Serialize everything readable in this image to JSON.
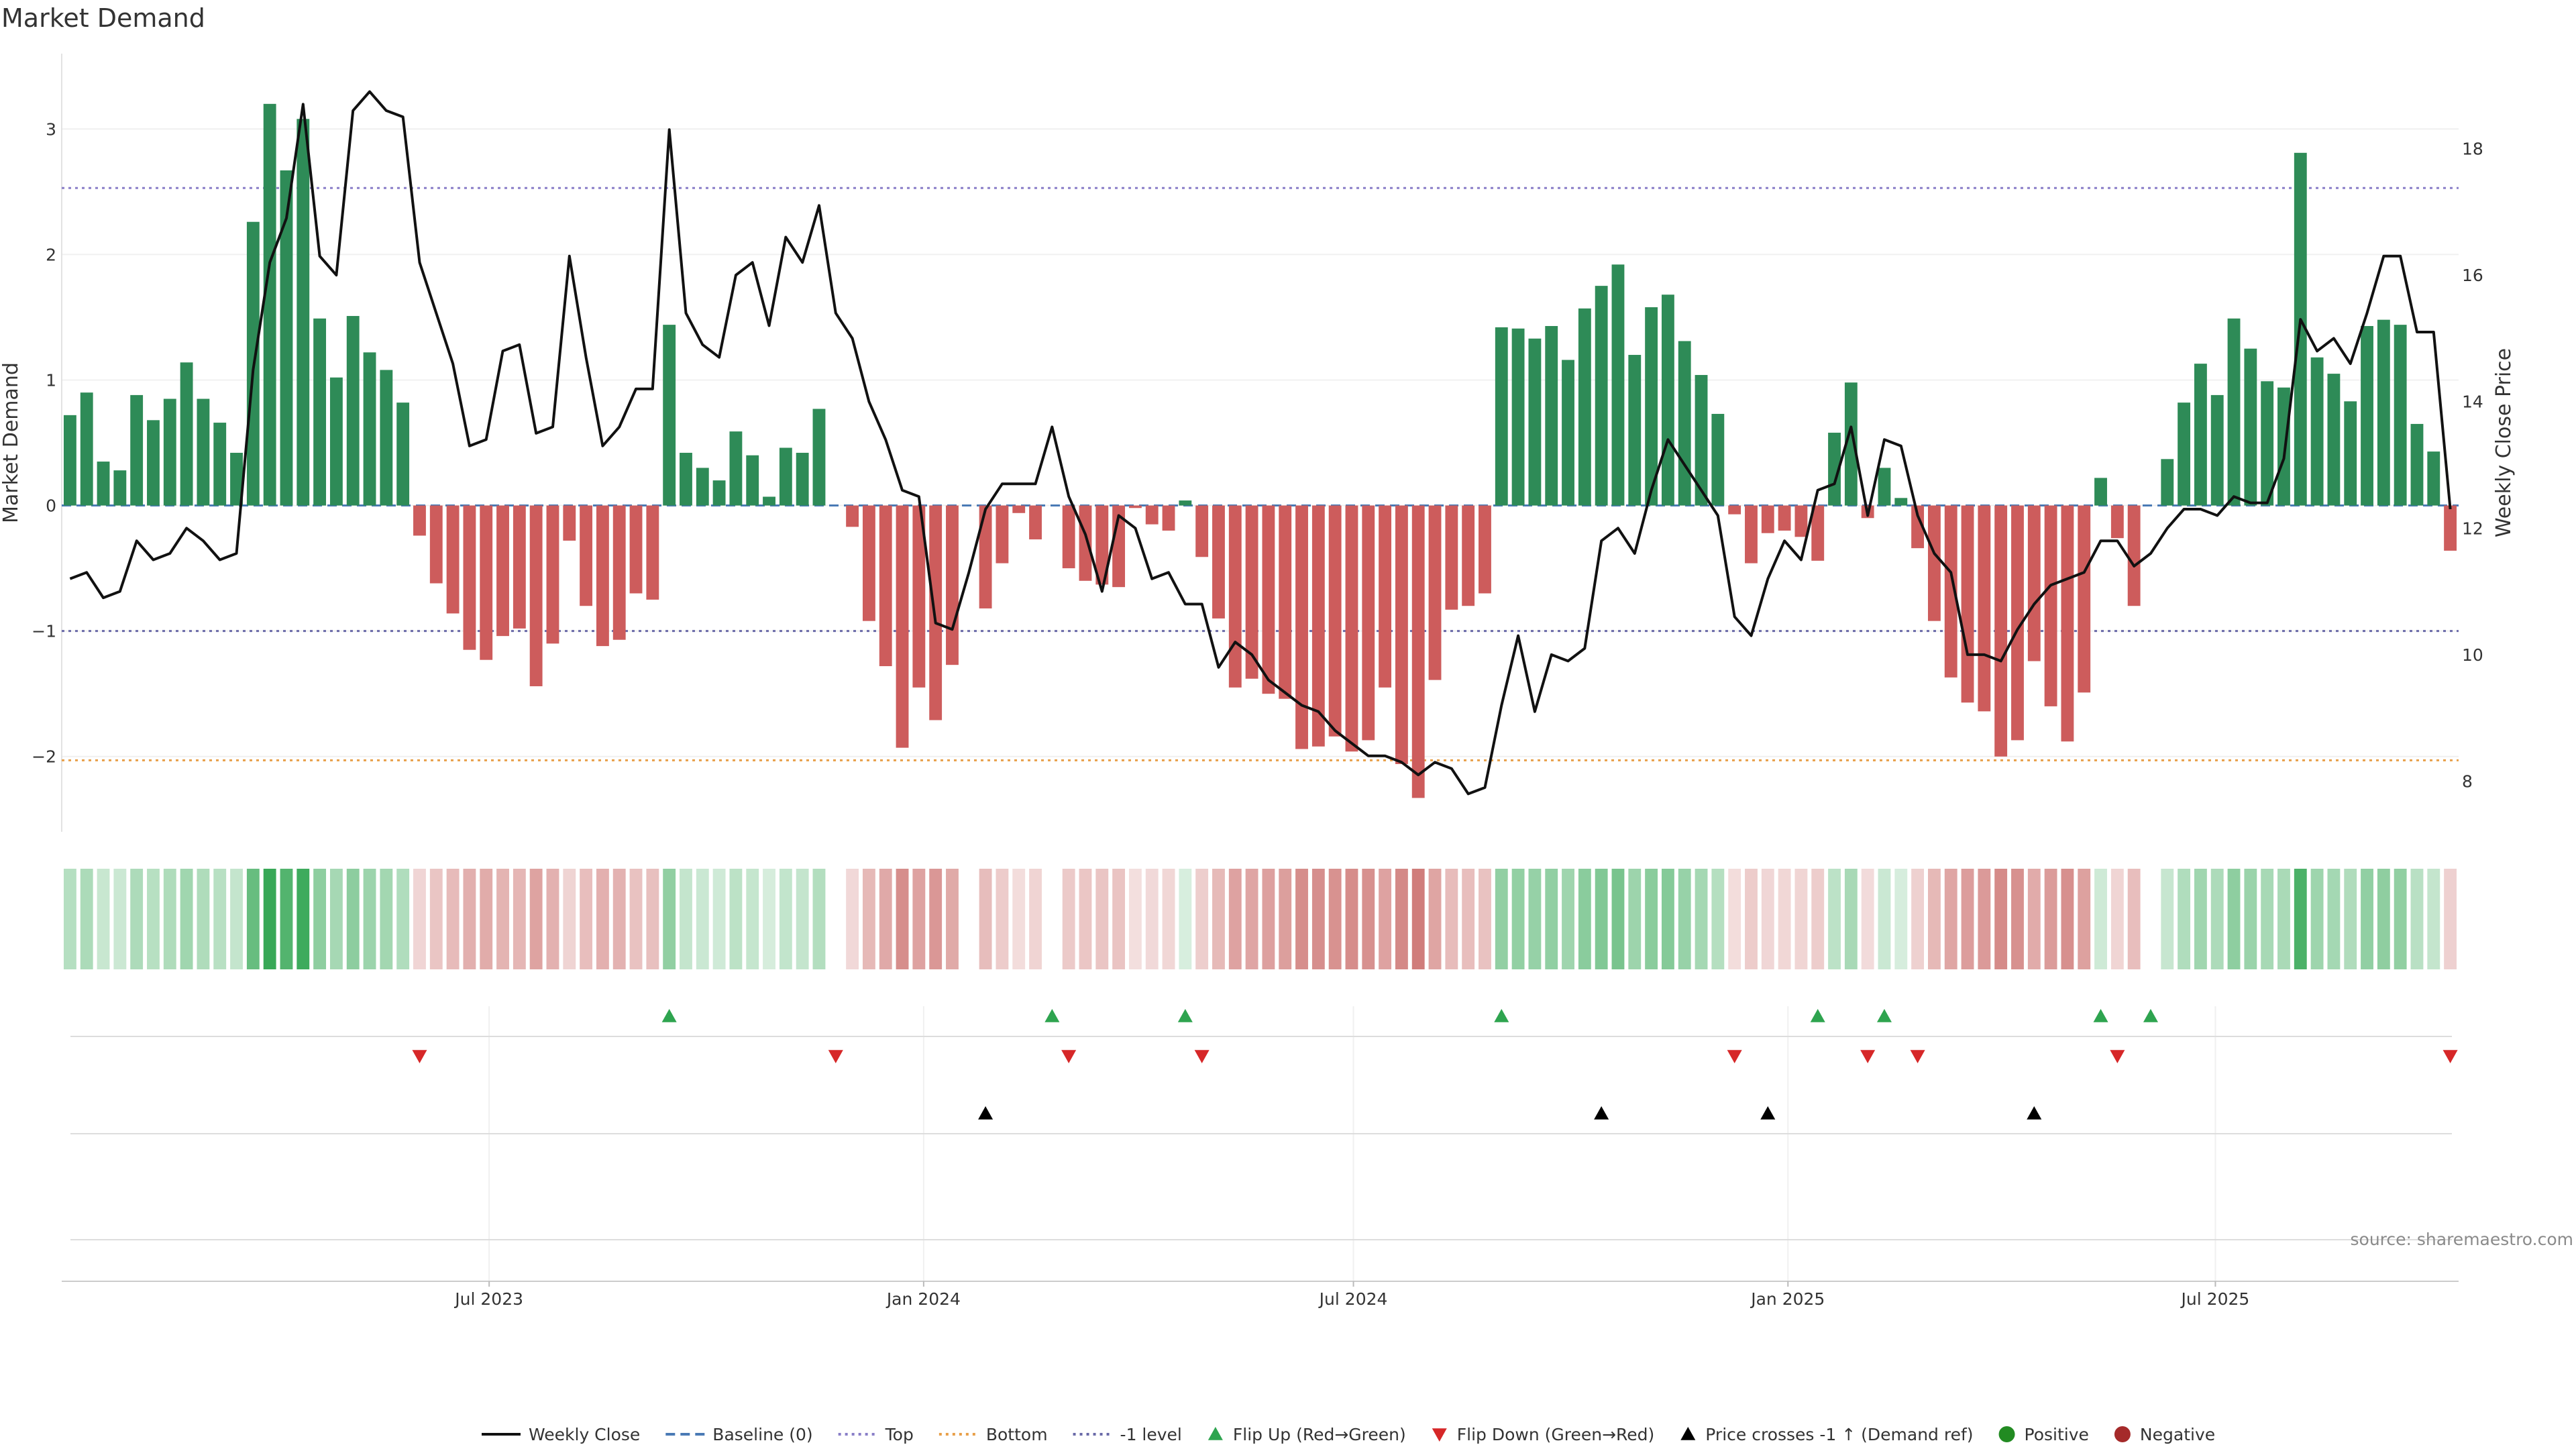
{
  "chart_data": {
    "type": "bar",
    "title": "Market Demand",
    "ylabel": "Market Demand",
    "y2label": "Weekly Close Price",
    "ylim": [
      -2.6,
      3.6
    ],
    "y2lim": [
      7.2,
      19.5
    ],
    "yticks": [
      -2,
      -1,
      0,
      1,
      2,
      3
    ],
    "y2ticks": [
      8,
      10,
      12,
      14,
      16,
      18
    ],
    "x_start": "2023-01-01",
    "x_end": "2025-10-12",
    "x_ticks": [
      {
        "date": "2023-07-01",
        "label": "Jul 2023"
      },
      {
        "date": "2024-01-01",
        "label": "Jan 2024"
      },
      {
        "date": "2024-07-01",
        "label": "Jul 2024"
      },
      {
        "date": "2025-01-01",
        "label": "Jan 2025"
      },
      {
        "date": "2025-07-01",
        "label": "Jul 2025"
      }
    ],
    "reference_lines": [
      {
        "name": "Top",
        "value": 2.53,
        "color": "#8a7fc8",
        "dash": "dotted"
      },
      {
        "name": "-1 level",
        "value": -1.0,
        "color": "#6a6aa8",
        "dash": "dotted"
      },
      {
        "name": "Bottom",
        "value": -2.03,
        "color": "#e8a04a",
        "dash": "dotted"
      },
      {
        "name": "Baseline (0)",
        "value": 0,
        "color": "#4a7ab5",
        "dash": "dashed"
      }
    ],
    "positive_color": "#2e8b57",
    "negative_color": "#cd5c5c",
    "demand": [
      0.72,
      0.9,
      0.35,
      0.28,
      0.88,
      0.68,
      0.85,
      1.14,
      0.85,
      0.66,
      0.42,
      2.26,
      3.2,
      2.67,
      3.08,
      1.49,
      1.02,
      1.51,
      1.22,
      1.08,
      0.82,
      -0.24,
      -0.62,
      -0.86,
      -1.15,
      -1.23,
      -1.04,
      -0.98,
      -1.44,
      -1.1,
      -0.28,
      -0.8,
      -1.12,
      -1.07,
      -0.7,
      -0.75,
      1.44,
      0.42,
      0.3,
      0.2,
      0.59,
      0.4,
      0.07,
      0.46,
      0.42,
      0.77,
      0.0,
      -0.17,
      -0.92,
      -1.28,
      -1.93,
      -1.45,
      -1.71,
      -1.27,
      0.0,
      -0.82,
      -0.46,
      -0.06,
      -0.27,
      0.0,
      -0.5,
      -0.6,
      -0.63,
      -0.65,
      -0.02,
      -0.15,
      -0.2,
      0.04,
      -0.41,
      -0.9,
      -1.45,
      -1.38,
      -1.5,
      -1.54,
      -1.94,
      -1.92,
      -1.84,
      -1.96,
      -1.87,
      -1.45,
      -2.06,
      -2.33,
      -1.39,
      -0.83,
      -0.8,
      -0.7,
      1.42,
      1.41,
      1.33,
      1.43,
      1.16,
      1.57,
      1.75,
      1.92,
      1.2,
      1.58,
      1.68,
      1.31,
      1.04,
      0.73,
      -0.07,
      -0.46,
      -0.22,
      -0.2,
      -0.25,
      -0.44,
      0.58,
      0.98,
      -0.1,
      0.3,
      0.06,
      -0.34,
      -0.92,
      -1.37,
      -1.57,
      -1.64,
      -2.0,
      -1.87,
      -1.24,
      -1.6,
      -1.88,
      -1.49,
      0.22,
      -0.26,
      -0.8,
      0.0,
      0.37,
      0.82,
      1.13,
      0.88,
      1.49,
      1.25,
      0.99,
      0.94,
      2.81,
      1.18,
      1.05,
      0.83,
      1.43,
      1.48,
      1.44,
      0.65,
      0.43,
      -0.36
    ],
    "price": [
      11.2,
      11.3,
      10.9,
      11.0,
      11.8,
      11.5,
      11.6,
      12.0,
      11.8,
      11.5,
      11.6,
      14.5,
      16.2,
      16.9,
      18.7,
      16.3,
      16.0,
      18.6,
      18.9,
      18.6,
      18.5,
      16.2,
      15.4,
      14.6,
      13.3,
      13.4,
      14.8,
      14.9,
      13.5,
      13.6,
      16.3,
      14.7,
      13.3,
      13.6,
      14.2,
      14.2,
      18.3,
      15.4,
      14.9,
      14.7,
      16.0,
      16.2,
      15.2,
      16.6,
      16.2,
      17.1,
      15.4,
      15.0,
      14.0,
      13.4,
      12.6,
      12.5,
      10.5,
      10.4,
      11.3,
      12.3,
      12.7,
      12.7,
      12.7,
      13.6,
      12.5,
      11.9,
      11.0,
      12.2,
      12.0,
      11.2,
      11.3,
      10.8,
      10.8,
      9.8,
      10.2,
      10.0,
      9.6,
      9.4,
      9.2,
      9.1,
      8.8,
      8.6,
      8.4,
      8.4,
      8.3,
      8.1,
      8.3,
      8.2,
      7.8,
      7.9,
      9.2,
      10.3,
      9.1,
      10.0,
      9.9,
      10.1,
      11.8,
      12.0,
      11.6,
      12.6,
      13.4,
      13.0,
      12.6,
      12.2,
      10.6,
      10.3,
      11.2,
      11.8,
      11.5,
      12.6,
      12.7,
      13.6,
      12.2,
      13.4,
      13.3,
      12.2,
      11.6,
      11.3,
      10.0,
      10.0,
      9.9,
      10.4,
      10.8,
      11.1,
      11.2,
      11.3,
      11.8,
      11.8,
      11.4,
      11.6,
      12.0,
      12.3,
      12.3,
      12.2,
      12.5,
      12.4,
      12.4,
      13.1,
      15.3,
      14.8,
      15.0,
      14.6,
      15.4,
      16.3,
      16.3,
      15.1,
      15.1,
      12.3
    ],
    "flip_up_indices": [
      36,
      59,
      67,
      86,
      105,
      109,
      122,
      125
    ],
    "flip_down_indices": [
      21,
      46,
      60,
      68,
      100,
      108,
      111,
      123,
      143
    ],
    "cross_up_indices": [
      55,
      92,
      102,
      118
    ],
    "series": [
      {
        "name": "Weekly Close",
        "color": "#111111"
      },
      {
        "name": "Baseline (0)",
        "color": "#4a7ab5"
      },
      {
        "name": "Top",
        "color": "#8a7fc8"
      },
      {
        "name": "Bottom",
        "color": "#e8a04a"
      },
      {
        "name": "-1 level",
        "color": "#6a6aa8"
      },
      {
        "name": "Flip Up (Red→Green)",
        "color": "#2ea44f"
      },
      {
        "name": "Flip Down (Green→Red)",
        "color": "#d62728"
      },
      {
        "name": "Price crosses -1 ↑ (Demand ref)",
        "color": "#000000"
      },
      {
        "name": "Positive",
        "color": "#228b22"
      },
      {
        "name": "Negative",
        "color": "#a52a2a"
      }
    ],
    "legend_position": "bottom",
    "source": "source: sharemaestro.com"
  }
}
